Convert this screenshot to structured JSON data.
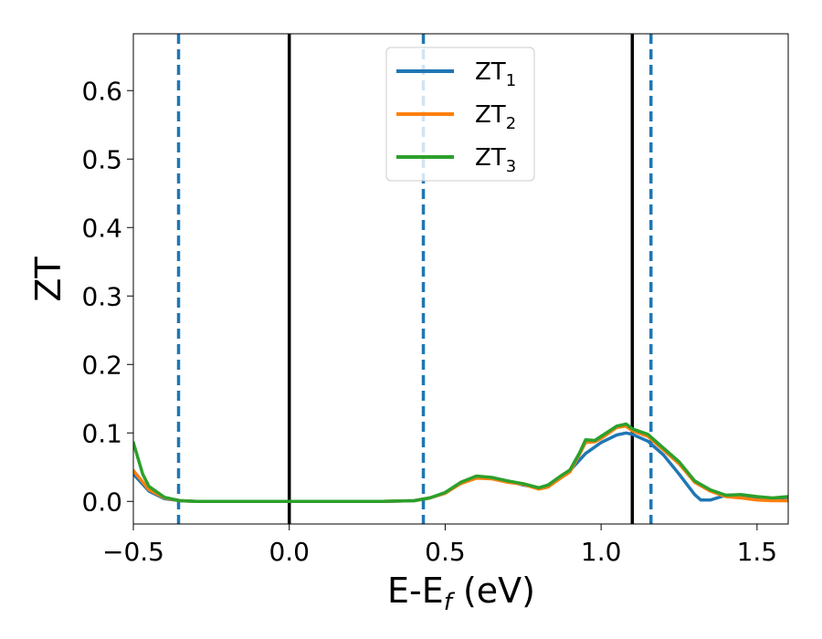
{
  "chart_data": {
    "type": "line",
    "xlabel": "E-E$_f$ (eV)",
    "xlabel_parts": {
      "main": "E-E",
      "sub": "f",
      "tail": " (eV)"
    },
    "ylabel": "ZT",
    "xlim": [
      -0.5,
      1.6
    ],
    "ylim": [
      -0.033,
      0.683
    ],
    "xticks": [
      -0.5,
      0.0,
      0.5,
      1.0,
      1.5
    ],
    "xtick_labels": [
      "−0.5",
      "0.0",
      "0.5",
      "1.0",
      "1.5"
    ],
    "yticks": [
      0.0,
      0.1,
      0.2,
      0.3,
      0.4,
      0.5,
      0.6
    ],
    "ytick_labels": [
      "0.0",
      "0.1",
      "0.2",
      "0.3",
      "0.4",
      "0.5",
      "0.6"
    ],
    "grid": false,
    "legend_position": "top-center",
    "vlines": [
      {
        "x": -0.355,
        "style": "dashed",
        "color": "#1f77b4"
      },
      {
        "x": 0.0,
        "style": "solid",
        "color": "#000000"
      },
      {
        "x": 0.43,
        "style": "dashed",
        "color": "#1f77b4"
      },
      {
        "x": 1.1,
        "style": "solid",
        "color": "#000000"
      },
      {
        "x": 1.16,
        "style": "dashed",
        "color": "#1f77b4"
      }
    ],
    "series": [
      {
        "name": "ZT1",
        "label_main": "ZT",
        "label_sub": "1",
        "color": "#1f77b4",
        "points": [
          [
            -0.5,
            0.04
          ],
          [
            -0.45,
            0.015
          ],
          [
            -0.4,
            0.004
          ],
          [
            -0.35,
            0.001
          ],
          [
            -0.3,
            0.0
          ],
          [
            0.0,
            0.0
          ],
          [
            0.3,
            0.0
          ],
          [
            0.4,
            0.001
          ],
          [
            0.45,
            0.005
          ],
          [
            0.5,
            0.012
          ],
          [
            0.55,
            0.027
          ],
          [
            0.6,
            0.036
          ],
          [
            0.65,
            0.034
          ],
          [
            0.7,
            0.03
          ],
          [
            0.75,
            0.024
          ],
          [
            0.8,
            0.02
          ],
          [
            0.83,
            0.022
          ],
          [
            0.87,
            0.035
          ],
          [
            0.9,
            0.045
          ],
          [
            0.95,
            0.07
          ],
          [
            1.0,
            0.086
          ],
          [
            1.05,
            0.097
          ],
          [
            1.08,
            0.1
          ],
          [
            1.1,
            0.098
          ],
          [
            1.15,
            0.088
          ],
          [
            1.2,
            0.068
          ],
          [
            1.25,
            0.04
          ],
          [
            1.3,
            0.01
          ],
          [
            1.32,
            0.002
          ],
          [
            1.35,
            0.002
          ],
          [
            1.4,
            0.009
          ],
          [
            1.45,
            0.009
          ],
          [
            1.5,
            0.005
          ],
          [
            1.55,
            0.004
          ],
          [
            1.6,
            0.006
          ]
        ]
      },
      {
        "name": "ZT2",
        "label_main": "ZT",
        "label_sub": "2",
        "color": "#ff7f0e",
        "points": [
          [
            -0.5,
            0.045
          ],
          [
            -0.45,
            0.017
          ],
          [
            -0.4,
            0.005
          ],
          [
            -0.35,
            0.001
          ],
          [
            -0.3,
            0.0
          ],
          [
            0.0,
            0.0
          ],
          [
            0.3,
            0.0
          ],
          [
            0.4,
            0.001
          ],
          [
            0.45,
            0.005
          ],
          [
            0.5,
            0.012
          ],
          [
            0.55,
            0.026
          ],
          [
            0.6,
            0.034
          ],
          [
            0.65,
            0.033
          ],
          [
            0.7,
            0.028
          ],
          [
            0.75,
            0.025
          ],
          [
            0.8,
            0.018
          ],
          [
            0.83,
            0.021
          ],
          [
            0.87,
            0.034
          ],
          [
            0.9,
            0.043
          ],
          [
            0.93,
            0.068
          ],
          [
            0.95,
            0.086
          ],
          [
            0.98,
            0.087
          ],
          [
            1.0,
            0.092
          ],
          [
            1.05,
            0.108
          ],
          [
            1.08,
            0.11
          ],
          [
            1.1,
            0.103
          ],
          [
            1.15,
            0.095
          ],
          [
            1.2,
            0.075
          ],
          [
            1.25,
            0.055
          ],
          [
            1.3,
            0.028
          ],
          [
            1.35,
            0.015
          ],
          [
            1.4,
            0.007
          ],
          [
            1.45,
            0.005
          ],
          [
            1.5,
            0.002
          ],
          [
            1.55,
            0.001
          ],
          [
            1.6,
            0.001
          ]
        ]
      },
      {
        "name": "ZT3",
        "label_main": "ZT",
        "label_sub": "3",
        "color": "#2ca02c",
        "points": [
          [
            -0.5,
            0.086
          ],
          [
            -0.47,
            0.04
          ],
          [
            -0.45,
            0.022
          ],
          [
            -0.4,
            0.006
          ],
          [
            -0.35,
            0.001
          ],
          [
            -0.3,
            0.0
          ],
          [
            0.0,
            0.0
          ],
          [
            0.3,
            0.0
          ],
          [
            0.4,
            0.001
          ],
          [
            0.45,
            0.005
          ],
          [
            0.5,
            0.013
          ],
          [
            0.55,
            0.028
          ],
          [
            0.6,
            0.037
          ],
          [
            0.65,
            0.035
          ],
          [
            0.7,
            0.03
          ],
          [
            0.75,
            0.026
          ],
          [
            0.8,
            0.02
          ],
          [
            0.83,
            0.024
          ],
          [
            0.87,
            0.037
          ],
          [
            0.9,
            0.046
          ],
          [
            0.93,
            0.07
          ],
          [
            0.95,
            0.09
          ],
          [
            0.98,
            0.089
          ],
          [
            1.0,
            0.095
          ],
          [
            1.05,
            0.11
          ],
          [
            1.08,
            0.113
          ],
          [
            1.1,
            0.106
          ],
          [
            1.15,
            0.098
          ],
          [
            1.2,
            0.078
          ],
          [
            1.25,
            0.058
          ],
          [
            1.3,
            0.03
          ],
          [
            1.35,
            0.017
          ],
          [
            1.4,
            0.009
          ],
          [
            1.45,
            0.01
          ],
          [
            1.5,
            0.007
          ],
          [
            1.55,
            0.005
          ],
          [
            1.6,
            0.007
          ]
        ]
      }
    ]
  }
}
